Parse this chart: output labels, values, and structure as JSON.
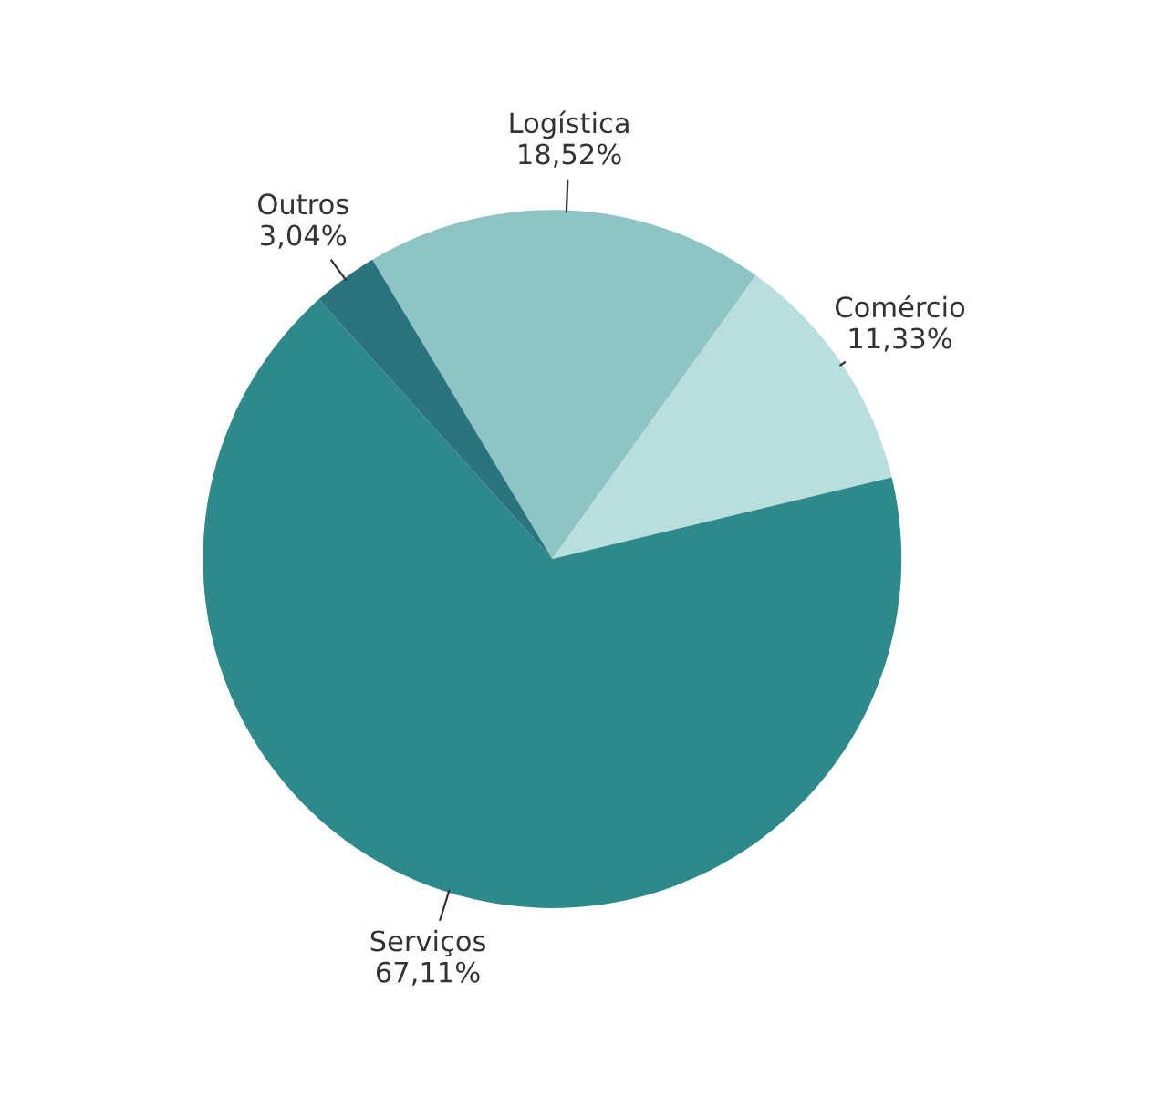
{
  "chart_data": {
    "type": "pie",
    "categories": [
      "Logística",
      "Comércio",
      "Serviços",
      "Outros"
    ],
    "values": [
      18.52,
      11.33,
      67.11,
      3.04
    ],
    "value_labels": [
      "18,52%",
      "11,33%",
      "67,11%",
      "3,04%"
    ],
    "colors": [
      "#8ec4c4",
      "#b8dede",
      "#2e8a8a",
      "#2a7480"
    ]
  }
}
